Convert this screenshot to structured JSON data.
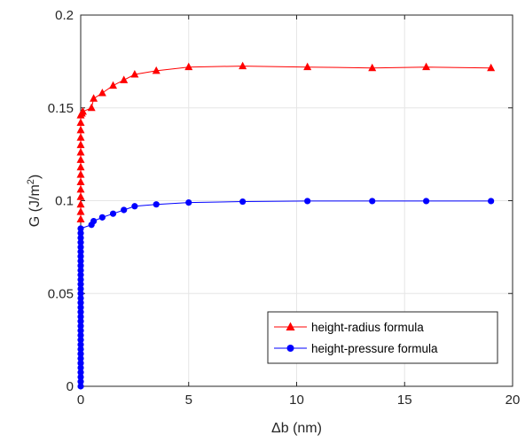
{
  "chart_data": {
    "type": "line",
    "xlabel": "Δb (nm)",
    "ylabel_main": "G (J/m",
    "ylabel_sup": "2",
    "ylabel_tail": ")",
    "xlim": [
      0,
      20
    ],
    "ylim": [
      0,
      0.2
    ],
    "xticks": [
      0,
      5,
      10,
      15,
      20
    ],
    "xtick_labels": [
      "0",
      "5",
      "10",
      "15",
      "20"
    ],
    "yticks": [
      0,
      0.05,
      0.1,
      0.15,
      0.2
    ],
    "ytick_labels": [
      "0",
      "0.05",
      "0.1",
      "0.15",
      "0.2"
    ],
    "grid": true,
    "legend_position": "bottom-right",
    "series": [
      {
        "name": "height-radius formula",
        "color": "#ff0000",
        "marker": "triangle",
        "x": [
          0,
          0,
          0,
          0,
          0,
          0,
          0,
          0,
          0,
          0,
          0,
          0,
          0,
          0,
          0,
          0.05,
          0.1,
          0.5,
          0.6,
          1.0,
          1.5,
          2.0,
          2.5,
          3.5,
          5.0,
          7.5,
          10.5,
          13.5,
          16.0,
          19.0
        ],
        "y": [
          0.09,
          0.094,
          0.098,
          0.102,
          0.106,
          0.11,
          0.114,
          0.118,
          0.122,
          0.126,
          0.13,
          0.134,
          0.138,
          0.142,
          0.146,
          0.147,
          0.148,
          0.15,
          0.155,
          0.158,
          0.162,
          0.165,
          0.168,
          0.17,
          0.172,
          0.1725,
          0.172,
          0.1715,
          0.172,
          0.1715
        ]
      },
      {
        "name": "height-pressure formula",
        "color": "#0000ff",
        "marker": "circle",
        "x": [
          0,
          0,
          0,
          0,
          0,
          0,
          0,
          0,
          0,
          0,
          0,
          0,
          0,
          0,
          0,
          0,
          0,
          0,
          0,
          0,
          0,
          0,
          0,
          0,
          0,
          0,
          0,
          0,
          0,
          0,
          0,
          0,
          0,
          0,
          0,
          0.5,
          0.6,
          1.0,
          1.5,
          2.0,
          2.5,
          3.5,
          5.0,
          7.5,
          10.5,
          13.5,
          16.0,
          19.0
        ],
        "y": [
          0,
          0.0025,
          0.005,
          0.0075,
          0.01,
          0.0125,
          0.015,
          0.0175,
          0.02,
          0.0225,
          0.025,
          0.0275,
          0.03,
          0.0325,
          0.035,
          0.0375,
          0.04,
          0.0425,
          0.045,
          0.0475,
          0.05,
          0.0525,
          0.055,
          0.0575,
          0.06,
          0.0625,
          0.065,
          0.0675,
          0.07,
          0.0725,
          0.075,
          0.0775,
          0.08,
          0.0825,
          0.085,
          0.087,
          0.089,
          0.091,
          0.093,
          0.095,
          0.097,
          0.098,
          0.099,
          0.0995,
          0.0998,
          0.0998,
          0.0998,
          0.0998
        ]
      }
    ]
  }
}
